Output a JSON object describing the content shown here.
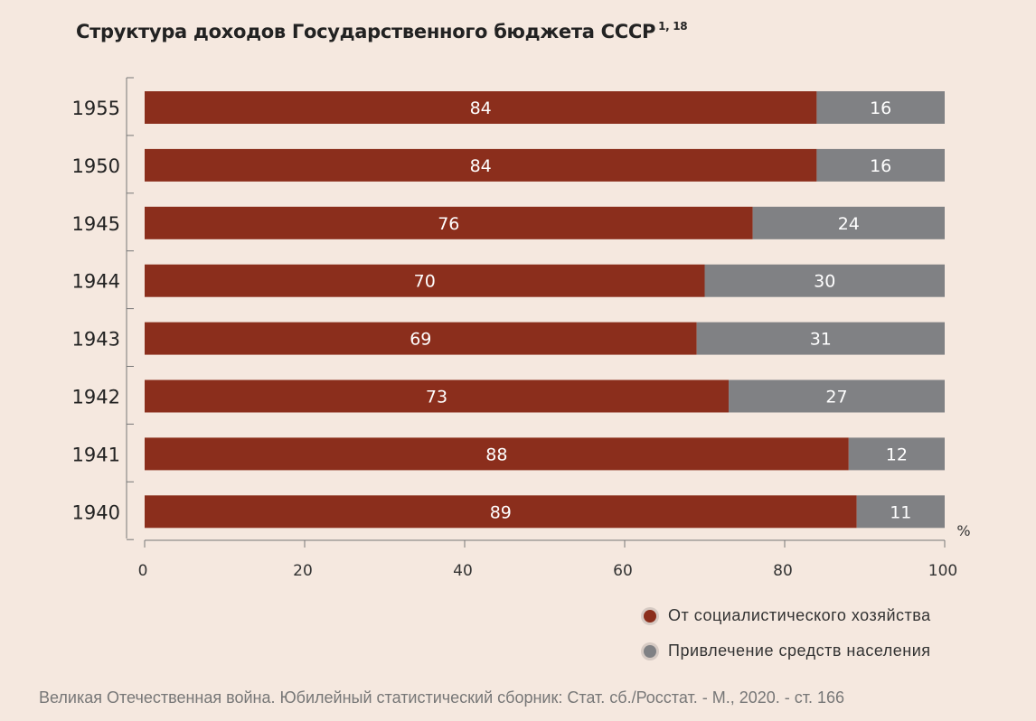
{
  "title": "Структура доходов Государственного бюджета СССР",
  "title_sup": "1, 18",
  "source": "Великая Отечественная война. Юбилейный статистический сборник: Стат. сб./Росстат. - М., 2020. -  ст. 166",
  "chart_data": {
    "type": "bar",
    "orientation": "horizontal",
    "stacked": true,
    "title": "Структура доходов Государственного бюджета СССР",
    "categories": [
      "1955",
      "1950",
      "1945",
      "1944",
      "1943",
      "1942",
      "1941",
      "1940"
    ],
    "series": [
      {
        "name": "От социалистического хозяйства",
        "color": "#8b2e1c",
        "values": [
          84,
          84,
          76,
          70,
          69,
          73,
          88,
          89
        ]
      },
      {
        "name": "Привлечение средств населения",
        "color": "#808184",
        "values": [
          16,
          16,
          24,
          30,
          31,
          27,
          12,
          11
        ]
      }
    ],
    "xlim": [
      0,
      100
    ],
    "xticks": [
      0,
      20,
      40,
      60,
      80,
      100
    ],
    "xunit": "%",
    "legend": "bottom-right",
    "grid": false
  }
}
